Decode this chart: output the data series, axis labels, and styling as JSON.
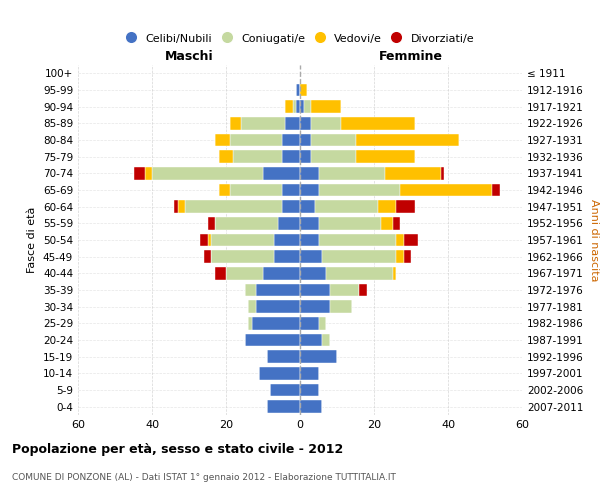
{
  "age_groups": [
    "100+",
    "95-99",
    "90-94",
    "85-89",
    "80-84",
    "75-79",
    "70-74",
    "65-69",
    "60-64",
    "55-59",
    "50-54",
    "45-49",
    "40-44",
    "35-39",
    "30-34",
    "25-29",
    "20-24",
    "15-19",
    "10-14",
    "5-9",
    "0-4"
  ],
  "birth_years": [
    "≤ 1911",
    "1912-1916",
    "1917-1921",
    "1922-1926",
    "1927-1931",
    "1932-1936",
    "1937-1941",
    "1942-1946",
    "1947-1951",
    "1952-1956",
    "1957-1961",
    "1962-1966",
    "1967-1971",
    "1972-1976",
    "1977-1981",
    "1982-1986",
    "1987-1991",
    "1992-1996",
    "1997-2001",
    "2002-2006",
    "2007-2011"
  ],
  "colors": {
    "celibe": "#4472c4",
    "coniugato": "#c5d9a0",
    "vedovo": "#ffc000",
    "divorziato": "#c00000"
  },
  "maschi": {
    "celibe": [
      0,
      1,
      1,
      4,
      5,
      5,
      10,
      5,
      5,
      6,
      7,
      7,
      10,
      12,
      12,
      13,
      15,
      9,
      11,
      8,
      9
    ],
    "coniugato": [
      0,
      0,
      1,
      12,
      14,
      13,
      30,
      14,
      26,
      17,
      17,
      17,
      10,
      3,
      2,
      1,
      0,
      0,
      0,
      0,
      0
    ],
    "vedovo": [
      0,
      0,
      2,
      3,
      4,
      4,
      2,
      3,
      2,
      0,
      1,
      0,
      0,
      0,
      0,
      0,
      0,
      0,
      0,
      0,
      0
    ],
    "divorziato": [
      0,
      0,
      0,
      0,
      0,
      0,
      3,
      0,
      1,
      2,
      2,
      2,
      3,
      0,
      0,
      0,
      0,
      0,
      0,
      0,
      0
    ]
  },
  "femmine": {
    "celibe": [
      0,
      0,
      1,
      3,
      3,
      3,
      5,
      5,
      4,
      5,
      5,
      6,
      7,
      8,
      8,
      5,
      6,
      10,
      5,
      5,
      6
    ],
    "coniugato": [
      0,
      0,
      2,
      8,
      12,
      12,
      18,
      22,
      17,
      17,
      21,
      20,
      18,
      8,
      6,
      2,
      2,
      0,
      0,
      0,
      0
    ],
    "vedovo": [
      0,
      2,
      8,
      20,
      28,
      16,
      15,
      25,
      5,
      3,
      2,
      2,
      1,
      0,
      0,
      0,
      0,
      0,
      0,
      0,
      0
    ],
    "divorziato": [
      0,
      0,
      0,
      0,
      0,
      0,
      1,
      2,
      5,
      2,
      4,
      2,
      0,
      2,
      0,
      0,
      0,
      0,
      0,
      0,
      0
    ]
  },
  "xlim": 60,
  "title": "Popolazione per età, sesso e stato civile - 2012",
  "subtitle": "COMUNE DI PONZONE (AL) - Dati ISTAT 1° gennaio 2012 - Elaborazione TUTTITALIA.IT",
  "ylabel_left": "Fasce di età",
  "ylabel_right": "Anni di nascita",
  "xlabel_left": "Maschi",
  "xlabel_right": "Femmine",
  "legend_labels": [
    "Celibi/Nubili",
    "Coniugati/e",
    "Vedovi/e",
    "Divorziati/e"
  ],
  "background_color": "#ffffff"
}
